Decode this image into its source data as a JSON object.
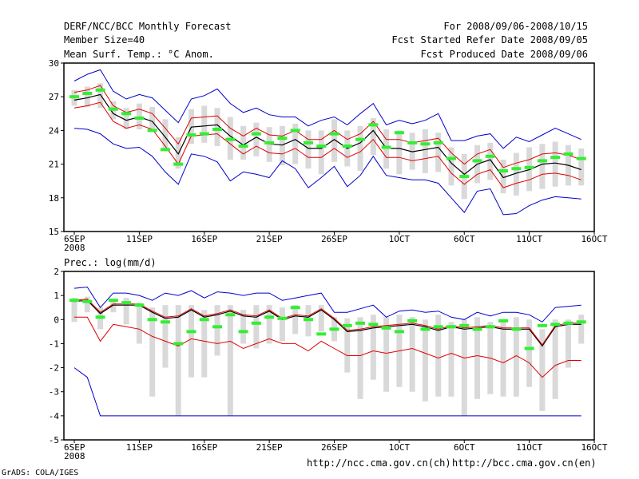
{
  "header": {
    "title": "DERF/NCC/BCC Monthly Forecast",
    "member_size": "Member Size=40",
    "variable": "Mean Surf. Temp.: °C Anom.",
    "period": "For 2008/09/06-2008/10/15",
    "start_ref": "Fcst Started Refer Date 2008/09/05",
    "produced": "Fcst Produced Date 2008/09/06"
  },
  "footer": {
    "grads": "GrADS: COLA/IGES",
    "url_ncc": "http://ncc.cma.gov.cn(ch)",
    "url_bcc": "http://bcc.cma.gov.cn(en)"
  },
  "colors": {
    "ensemble_mean": "#000000",
    "std_band": "#e00000",
    "envelope": "#0000cc",
    "member_median": "#33ee33",
    "quartile_box": "#d9d9d9"
  },
  "chart_data": [
    {
      "type": "line",
      "title": "Mean Surf. Temp.: °C Anom.",
      "xlabel": "",
      "ylabel": "",
      "x": [
        1,
        2,
        3,
        4,
        5,
        6,
        7,
        8,
        9,
        10,
        11,
        12,
        13,
        14,
        15,
        16,
        17,
        18,
        19,
        20,
        21,
        22,
        23,
        24,
        25,
        26,
        27,
        28,
        29,
        30,
        31,
        32,
        33,
        34,
        35,
        36,
        37,
        38,
        39,
        40
      ],
      "xtick_labels": [
        "6SEP",
        "11SEP",
        "16SEP",
        "21SEP",
        "26SEP",
        "1OCT",
        "6OCT",
        "11OCT",
        "16OCT"
      ],
      "xtick_positions": [
        1,
        6,
        11,
        16,
        21,
        26,
        31,
        36,
        41
      ],
      "xtick_year": "2008",
      "xlim": [
        0.2,
        41
      ],
      "ylim": [
        15,
        30
      ],
      "yticks": [
        15,
        18,
        21,
        24,
        27,
        30
      ],
      "series": [
        {
          "name": "ensemble_mean",
          "values": [
            26.7,
            26.9,
            27.2,
            25.5,
            24.9,
            25.2,
            24.8,
            23.4,
            21.9,
            24.3,
            24.4,
            24.5,
            23.5,
            22.7,
            23.4,
            22.8,
            22.7,
            23.2,
            22.4,
            22.4,
            23.2,
            22.4,
            22.9,
            24.0,
            22.4,
            22.4,
            22.1,
            22.3,
            22.5,
            21.1,
            20.1,
            21.0,
            21.4,
            19.8,
            20.2,
            20.5,
            21.0,
            21.1,
            20.9,
            20.5
          ]
        },
        {
          "name": "mean_plus_std",
          "values": [
            27.4,
            27.6,
            28.0,
            26.2,
            25.6,
            25.9,
            25.5,
            24.2,
            22.8,
            25.1,
            25.2,
            25.3,
            24.2,
            23.5,
            24.2,
            23.6,
            23.5,
            24.0,
            23.2,
            23.2,
            24.0,
            23.2,
            23.7,
            24.8,
            23.2,
            23.2,
            22.9,
            23.1,
            23.3,
            22.0,
            21.0,
            21.9,
            22.3,
            20.7,
            21.1,
            21.4,
            21.9,
            22.0,
            21.8,
            21.4
          ]
        },
        {
          "name": "mean_minus_std",
          "values": [
            26.0,
            26.2,
            26.5,
            24.8,
            24.2,
            24.5,
            24.1,
            22.6,
            21.0,
            23.5,
            23.6,
            23.7,
            22.8,
            21.9,
            22.6,
            22.0,
            21.9,
            22.4,
            21.6,
            21.6,
            22.4,
            21.6,
            22.1,
            23.2,
            21.6,
            21.6,
            21.3,
            21.5,
            21.7,
            20.2,
            19.2,
            20.1,
            20.5,
            18.9,
            19.3,
            19.6,
            20.1,
            20.2,
            20.0,
            19.6
          ]
        },
        {
          "name": "ensemble_max",
          "values": [
            28.4,
            29.0,
            29.4,
            27.5,
            26.8,
            27.2,
            26.9,
            25.8,
            24.7,
            26.8,
            27.1,
            27.7,
            26.4,
            25.6,
            26.0,
            25.4,
            25.2,
            25.2,
            24.4,
            24.9,
            25.2,
            24.5,
            25.5,
            26.4,
            24.5,
            24.9,
            24.6,
            24.9,
            25.5,
            23.1,
            23.1,
            23.5,
            23.7,
            22.4,
            23.4,
            23.0,
            23.6,
            24.2,
            23.7,
            23.2
          ]
        },
        {
          "name": "ensemble_min",
          "values": [
            24.2,
            24.1,
            23.7,
            22.8,
            22.4,
            22.5,
            21.7,
            20.3,
            19.2,
            21.9,
            21.7,
            21.2,
            19.5,
            20.3,
            20.1,
            19.8,
            21.3,
            20.6,
            18.9,
            19.8,
            20.8,
            19.0,
            20.0,
            21.7,
            20.0,
            19.8,
            19.6,
            19.6,
            19.3,
            18.0,
            16.7,
            18.6,
            18.8,
            16.5,
            16.6,
            17.3,
            17.8,
            18.1,
            18.0,
            17.9
          ]
        }
      ],
      "boxes": {
        "low": [
          26.2,
          26.1,
          26.0,
          25.0,
          24.1,
          24.1,
          23.9,
          22.4,
          20.6,
          22.8,
          22.9,
          22.6,
          21.4,
          21.4,
          21.7,
          21.2,
          20.9,
          21.0,
          20.6,
          20.1,
          21.2,
          20.8,
          20.4,
          21.8,
          20.6,
          20.1,
          20.5,
          20.2,
          20.3,
          19.1,
          17.9,
          19.3,
          19.6,
          18.4,
          18.2,
          18.6,
          18.8,
          19.0,
          19.1,
          19.1
        ],
        "high": [
          27.6,
          27.9,
          28.2,
          26.6,
          26.0,
          26.4,
          26.1,
          25.0,
          23.4,
          25.9,
          26.2,
          26.0,
          25.2,
          24.4,
          24.7,
          24.3,
          24.4,
          24.6,
          24.0,
          24.0,
          25.0,
          24.0,
          24.4,
          25.1,
          24.1,
          24.0,
          23.8,
          24.1,
          23.8,
          22.5,
          21.9,
          22.7,
          22.9,
          21.4,
          22.0,
          22.5,
          22.8,
          23.0,
          22.7,
          22.4
        ]
      },
      "medians": [
        27.0,
        27.3,
        27.6,
        25.9,
        25.5,
        25.1,
        24.0,
        22.3,
        21.0,
        23.6,
        23.7,
        24.1,
        23.2,
        22.6,
        23.7,
        22.9,
        23.3,
        24.0,
        22.9,
        22.6,
        23.7,
        22.6,
        23.2,
        24.5,
        22.5,
        23.8,
        22.9,
        22.8,
        22.9,
        21.5,
        19.9,
        21.3,
        21.7,
        20.4,
        20.6,
        20.7,
        21.3,
        21.6,
        21.9,
        21.5
      ]
    },
    {
      "type": "line",
      "title": "Prec.: log(mm/d)",
      "xlabel": "",
      "ylabel": "",
      "x": [
        1,
        2,
        3,
        4,
        5,
        6,
        7,
        8,
        9,
        10,
        11,
        12,
        13,
        14,
        15,
        16,
        17,
        18,
        19,
        20,
        21,
        22,
        23,
        24,
        25,
        26,
        27,
        28,
        29,
        30,
        31,
        32,
        33,
        34,
        35,
        36,
        37,
        38,
        39,
        40
      ],
      "xtick_labels": [
        "6SEP",
        "11SEP",
        "16SEP",
        "21SEP",
        "26SEP",
        "1OCT",
        "6OCT",
        "11OCT",
        "16OCT"
      ],
      "xtick_positions": [
        1,
        6,
        11,
        16,
        21,
        26,
        31,
        36,
        41
      ],
      "xtick_year": "2008",
      "xlim": [
        0.2,
        41
      ],
      "ylim": [
        -5,
        2
      ],
      "yticks": [
        -5,
        -4,
        -3,
        -2,
        -1,
        0,
        1,
        2
      ],
      "series": [
        {
          "name": "ensemble_mean",
          "values": [
            0.75,
            0.8,
            0.25,
            0.6,
            0.6,
            0.6,
            0.3,
            0.05,
            0.1,
            0.4,
            0.1,
            0.2,
            0.35,
            0.15,
            0.1,
            0.35,
            0.0,
            0.15,
            0.1,
            0.4,
            0.0,
            -0.5,
            -0.45,
            -0.35,
            -0.3,
            -0.25,
            -0.2,
            -0.3,
            -0.45,
            -0.3,
            -0.4,
            -0.35,
            -0.3,
            -0.4,
            -0.4,
            -0.4,
            -1.1,
            -0.3,
            -0.2,
            -0.2
          ]
        },
        {
          "name": "mean_plus_std",
          "values": [
            0.8,
            0.85,
            0.3,
            0.65,
            0.65,
            0.65,
            0.35,
            0.1,
            0.15,
            0.45,
            0.15,
            0.25,
            0.4,
            0.2,
            0.15,
            0.4,
            0.05,
            0.2,
            0.15,
            0.45,
            0.05,
            -0.45,
            -0.4,
            -0.3,
            -0.25,
            -0.2,
            -0.15,
            -0.25,
            -0.4,
            -0.25,
            -0.35,
            -0.3,
            -0.25,
            -0.35,
            -0.35,
            -0.35,
            -1.05,
            -0.25,
            -0.15,
            -0.15
          ]
        },
        {
          "name": "mean_minus_std",
          "values": [
            0.1,
            0.1,
            -0.9,
            -0.2,
            -0.3,
            -0.4,
            -0.7,
            -0.9,
            -1.1,
            -0.8,
            -0.9,
            -1.0,
            -0.9,
            -1.2,
            -1.0,
            -0.8,
            -1.0,
            -1.0,
            -1.3,
            -0.9,
            -1.2,
            -1.5,
            -1.5,
            -1.3,
            -1.4,
            -1.3,
            -1.2,
            -1.4,
            -1.6,
            -1.4,
            -1.6,
            -1.5,
            -1.6,
            -1.8,
            -1.5,
            -1.8,
            -2.4,
            -1.9,
            -1.7,
            -1.7
          ]
        },
        {
          "name": "ensemble_max",
          "values": [
            1.3,
            1.35,
            0.5,
            1.1,
            1.1,
            1.0,
            0.8,
            1.1,
            1.0,
            1.2,
            0.9,
            1.15,
            1.1,
            1.0,
            1.1,
            1.1,
            0.8,
            0.9,
            1.0,
            1.1,
            0.3,
            0.3,
            0.45,
            0.6,
            0.1,
            0.35,
            0.4,
            0.3,
            0.35,
            0.1,
            0.0,
            0.3,
            0.15,
            0.3,
            0.3,
            0.2,
            -0.1,
            0.5,
            0.55,
            0.6
          ]
        },
        {
          "name": "ensemble_min",
          "values": [
            -2.0,
            -2.4,
            -4.0,
            -4.0,
            -4.0,
            -4.0,
            -4.0,
            -4.0,
            -4.0,
            -4.0,
            -4.0,
            -4.0,
            -4.0,
            -4.0,
            -4.0,
            -4.0,
            -4.0,
            -4.0,
            -4.0,
            -4.0,
            -4.0,
            -4.0,
            -4.0,
            -4.0,
            -4.0,
            -4.0,
            -4.0,
            -4.0,
            -4.0,
            -4.0,
            -4.0,
            -4.0,
            -4.0,
            -4.0,
            -4.0,
            -4.0,
            -4.0,
            -4.0,
            -4.0,
            -4.0
          ]
        }
      ],
      "boxes": {
        "low": [
          -0.1,
          0.3,
          -0.4,
          0.3,
          -0.2,
          -1.0,
          -3.2,
          -2.0,
          -4.0,
          -2.4,
          -2.4,
          -1.5,
          -4.0,
          -1.0,
          -1.2,
          -1.0,
          -0.9,
          -0.6,
          -0.7,
          -0.5,
          -0.9,
          -2.2,
          -3.3,
          -2.5,
          -3.0,
          -2.8,
          -3.0,
          -3.4,
          -3.2,
          -3.2,
          -4.0,
          -3.3,
          -3.1,
          -3.2,
          -3.2,
          -2.8,
          -3.8,
          -3.3,
          -2.0,
          -1.0
        ],
        "high": [
          0.9,
          0.95,
          0.5,
          0.8,
          0.9,
          0.7,
          0.5,
          0.6,
          0.6,
          0.6,
          0.4,
          0.6,
          0.6,
          0.4,
          0.6,
          0.6,
          0.5,
          0.6,
          0.6,
          0.6,
          0.1,
          0.05,
          0.1,
          0.2,
          0.1,
          0.2,
          0.1,
          0.0,
          0.2,
          -0.1,
          0.0,
          0.1,
          -0.1,
          0.0,
          0.1,
          0.0,
          -0.4,
          0.0,
          0.0,
          0.2
        ]
      },
      "medians": [
        0.8,
        0.75,
        0.1,
        0.8,
        0.7,
        0.6,
        0.0,
        -0.1,
        -1.0,
        -0.5,
        0.0,
        -0.3,
        0.2,
        -0.5,
        -0.15,
        0.1,
        0.05,
        0.5,
        0.0,
        -0.6,
        -0.4,
        -0.25,
        -0.15,
        -0.2,
        -0.35,
        -0.5,
        -0.05,
        -0.4,
        -0.3,
        -0.3,
        -0.25,
        -0.4,
        -0.3,
        -0.05,
        -0.4,
        -1.2,
        -0.25,
        -0.2,
        -0.15,
        -0.1
      ]
    }
  ]
}
